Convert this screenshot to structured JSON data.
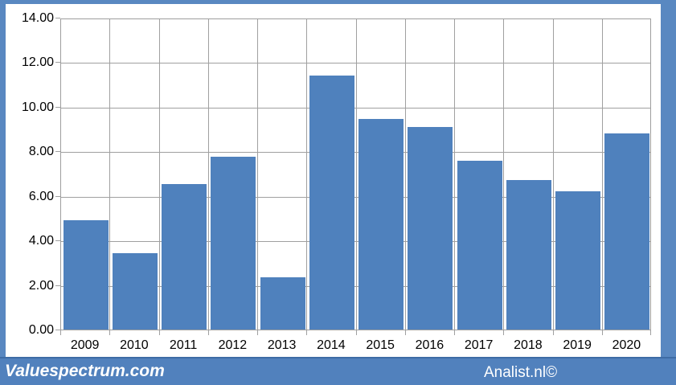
{
  "chart_data": {
    "type": "bar",
    "categories": [
      "2009",
      "2010",
      "2011",
      "2012",
      "2013",
      "2014",
      "2015",
      "2016",
      "2017",
      "2018",
      "2019",
      "2020"
    ],
    "values": [
      4.95,
      3.45,
      6.55,
      7.8,
      2.35,
      11.45,
      9.5,
      9.15,
      7.6,
      6.75,
      6.25,
      8.85
    ],
    "title": "",
    "xlabel": "",
    "ylabel": "",
    "ylim": [
      0,
      14
    ],
    "yticks": [
      0,
      2,
      4,
      6,
      8,
      10,
      12,
      14
    ],
    "ytick_labels": [
      "0.00",
      "2.00",
      "4.00",
      "6.00",
      "8.00",
      "10.00",
      "12.00",
      "14.00"
    ],
    "grid": true,
    "legend": "none",
    "bar_color": "#4f81bd"
  },
  "footer": {
    "left_text": "Valuespectrum.com",
    "right_text": "Analist.nl©"
  },
  "colors": {
    "frame_blue": "#5988c1",
    "panel_white": "#ffffff",
    "footer_blue": "#5181bd",
    "bar_blue": "#4f81bd",
    "grid_gray": "#a0a0a0",
    "text_black": "#000000",
    "footer_text_white": "#ffffff"
  }
}
